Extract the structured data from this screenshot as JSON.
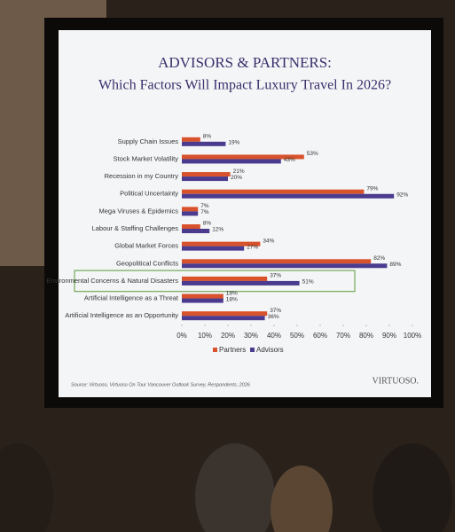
{
  "chart_data": {
    "type": "bar",
    "orientation": "horizontal",
    "title": "ADVISORS & PARTNERS:",
    "subtitle": "Which Factors Will Impact Luxury Travel In 2026?",
    "categories": [
      "Supply Chain Issues",
      "Stock Market Volatility",
      "Recession in my Country",
      "Political Uncertainty",
      "Mega Viruses & Epidemics",
      "Labour & Staffing Challenges",
      "Global Market Forces",
      "Geopolitical Conflicts",
      "Environmental Concerns & Natural Disasters",
      "Artificial Intelligence as a Threat",
      "Artificial Intelligence as an Opportunity"
    ],
    "series": [
      {
        "name": "Partners",
        "color": "#d8522b",
        "values": [
          8,
          53,
          21,
          79,
          7,
          8,
          34,
          82,
          37,
          18,
          37
        ],
        "value_labels": [
          "8%",
          "53%",
          "21%",
          "79%",
          "7%",
          "8%",
          "34%",
          "82%",
          "37%",
          "18%",
          "37%"
        ]
      },
      {
        "name": "Advisors",
        "color": "#4a3b8f",
        "values": [
          19,
          43,
          20,
          92,
          7,
          12,
          27,
          89,
          51,
          18,
          36
        ],
        "value_labels": [
          "19%",
          "43%",
          "20%",
          "92%",
          "7%",
          "12%",
          "27%",
          "89%",
          "51%",
          "18%",
          "36%"
        ]
      }
    ],
    "xlim": [
      0,
      100
    ],
    "xticks": [
      {
        "value": 0,
        "label": "0%"
      },
      {
        "value": 10,
        "label": "10%"
      },
      {
        "value": 20,
        "label": "20%"
      },
      {
        "value": 30,
        "label": "30%"
      },
      {
        "value": 40,
        "label": "40%"
      },
      {
        "value": 50,
        "label": "50%"
      },
      {
        "value": 60,
        "label": "60%"
      },
      {
        "value": 70,
        "label": "70%"
      },
      {
        "value": 80,
        "label": "80%"
      },
      {
        "value": 90,
        "label": "90%"
      },
      {
        "value": 100,
        "label": "100%"
      }
    ],
    "legend": "bottom",
    "source": "Source: Virtuoso, Virtuoso On Tour Vancouver Outlook Survey, Respondents, 2026",
    "logo": "VIRTUOSO."
  }
}
